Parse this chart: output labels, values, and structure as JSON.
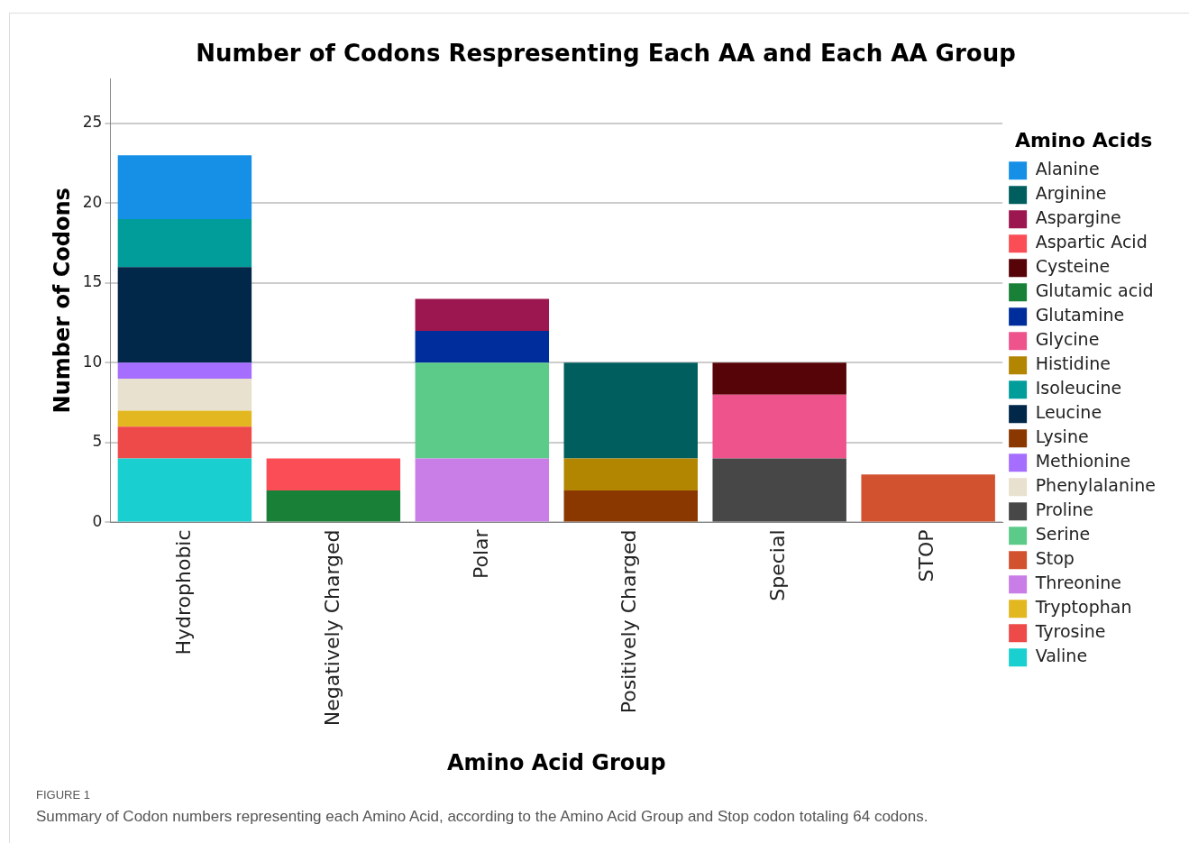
{
  "chart_data": {
    "type": "bar",
    "title": "Number of Codons Respresenting Each AA and Each AA Group",
    "xlabel": "Amino Acid Group",
    "ylabel": "Number of Codons",
    "legend_title": "Amino Acids",
    "categories": [
      "Hydrophobic",
      "Negatively Charged",
      "Polar",
      "Positively Charged",
      "Special",
      "STOP"
    ],
    "stacked": true,
    "ylim": [
      0,
      27.8
    ],
    "yticks": [
      0,
      5,
      10,
      15,
      20,
      25
    ],
    "grid": "y",
    "legend": "right",
    "series": [
      {
        "name": "Valine",
        "color": "#1acfcf",
        "values": [
          4,
          null,
          null,
          null,
          null,
          null
        ]
      },
      {
        "name": "Tyrosine",
        "color": "#ee4a4a",
        "values": [
          2,
          null,
          null,
          null,
          null,
          null
        ]
      },
      {
        "name": "Tryptophan",
        "color": "#e2b720",
        "values": [
          1,
          null,
          null,
          null,
          null,
          null
        ]
      },
      {
        "name": "Threonine",
        "color": "#c87ee6",
        "values": [
          null,
          null,
          4,
          null,
          null,
          null
        ]
      },
      {
        "name": "Stop",
        "color": "#d2522f",
        "values": [
          null,
          null,
          null,
          null,
          null,
          3
        ]
      },
      {
        "name": "Serine",
        "color": "#5ccb8a",
        "values": [
          null,
          null,
          6,
          null,
          null,
          null
        ]
      },
      {
        "name": "Proline",
        "color": "#474747",
        "values": [
          null,
          null,
          null,
          null,
          4,
          null
        ]
      },
      {
        "name": "Phenylalanine",
        "color": "#e8e1cf",
        "values": [
          2,
          null,
          null,
          null,
          null,
          null
        ]
      },
      {
        "name": "Methionine",
        "color": "#a56eff",
        "values": [
          1,
          null,
          null,
          null,
          null,
          null
        ]
      },
      {
        "name": "Lysine",
        "color": "#8a3800",
        "values": [
          null,
          null,
          null,
          2,
          null,
          null
        ]
      },
      {
        "name": "Leucine",
        "color": "#012749",
        "values": [
          6,
          null,
          null,
          null,
          null,
          null
        ]
      },
      {
        "name": "Isoleucine",
        "color": "#009d9a",
        "values": [
          3,
          null,
          null,
          null,
          null,
          null
        ]
      },
      {
        "name": "Histidine",
        "color": "#b28600",
        "values": [
          null,
          null,
          null,
          2,
          null,
          null
        ]
      },
      {
        "name": "Glycine",
        "color": "#ee538b",
        "values": [
          null,
          null,
          null,
          null,
          4,
          null
        ]
      },
      {
        "name": "Glutamine",
        "color": "#002d9c",
        "values": [
          null,
          null,
          2,
          null,
          null,
          null
        ]
      },
      {
        "name": "Glutamic acid",
        "color": "#198038",
        "values": [
          null,
          2,
          null,
          null,
          null,
          null
        ]
      },
      {
        "name": "Cysteine",
        "color": "#570408",
        "values": [
          null,
          null,
          null,
          null,
          2,
          null
        ]
      },
      {
        "name": "Aspartic Acid",
        "color": "#fa4d56",
        "values": [
          null,
          2,
          null,
          null,
          null,
          null
        ]
      },
      {
        "name": "Aspargine",
        "color": "#9c1650",
        "values": [
          null,
          null,
          2,
          null,
          null,
          null
        ]
      },
      {
        "name": "Arginine",
        "color": "#005e5e",
        "values": [
          null,
          null,
          null,
          6,
          null,
          null
        ]
      },
      {
        "name": "Alanine",
        "color": "#1590e6",
        "values": [
          4,
          null,
          null,
          null,
          null,
          null
        ]
      }
    ],
    "annotations": [
      "FIGURE 1",
      "Summary of Codon numbers representing each Amino Acid, according to the Amino Acid Group and Stop codon totaling 64 codons."
    ]
  }
}
